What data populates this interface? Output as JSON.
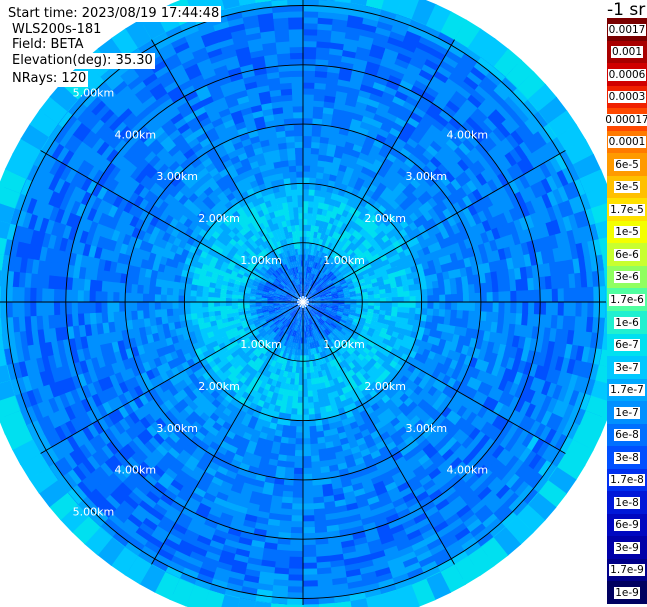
{
  "header": {
    "start_time": "Start time: 2023/08/19 17:44:48",
    "instrument": "WLS200s-181",
    "field": "Field: BETA",
    "elevation": "Elevation(deg): 35.30",
    "nrays": "NRays: 120"
  },
  "colorbar": {
    "unit": "-1 sr",
    "levels": [
      {
        "label": "0.0017",
        "color": "#7a0000"
      },
      {
        "label": "0.001",
        "color": "#a80000"
      },
      {
        "label": "0.0006",
        "color": "#d00000"
      },
      {
        "label": "0.0003",
        "color": "#f02000"
      },
      {
        "label": "0.00017",
        "color": "#ff4800"
      },
      {
        "label": "0.0001",
        "color": "#ff7a00"
      },
      {
        "label": "6e-5",
        "color": "#ff9a00"
      },
      {
        "label": "3e-5",
        "color": "#ffc000"
      },
      {
        "label": "1.7e-5",
        "color": "#ffe000"
      },
      {
        "label": "1e-5",
        "color": "#f4ff00"
      },
      {
        "label": "6e-6",
        "color": "#c8ff30"
      },
      {
        "label": "3e-6",
        "color": "#90ff60"
      },
      {
        "label": "1.7e-6",
        "color": "#50ffa0"
      },
      {
        "label": "1e-6",
        "color": "#20f0d0"
      },
      {
        "label": "6e-7",
        "color": "#00e0f0"
      },
      {
        "label": "3e-7",
        "color": "#00c8ff"
      },
      {
        "label": "1.7e-7",
        "color": "#00a8ff"
      },
      {
        "label": "1e-7",
        "color": "#0090ff"
      },
      {
        "label": "6e-8",
        "color": "#0070ff"
      },
      {
        "label": "3e-8",
        "color": "#0050ff"
      },
      {
        "label": "1.7e-8",
        "color": "#0030f0"
      },
      {
        "label": "1e-8",
        "color": "#0018d8"
      },
      {
        "label": "6e-9",
        "color": "#0008c0"
      },
      {
        "label": "3e-9",
        "color": "#0000a8"
      },
      {
        "label": "1.7e-9",
        "color": "#000088"
      },
      {
        "label": "1e-9",
        "color": "#000060"
      }
    ]
  },
  "chart_data": {
    "type": "heatmap",
    "projection": "polar",
    "field": "BETA",
    "elevation_deg": 35.3,
    "nrays": 120,
    "range_max_km": 5.6,
    "ring_labels": [
      "1.00km",
      "2.00km",
      "3.00km",
      "4.00km",
      "5.00km"
    ],
    "ring_values_km": [
      1,
      2,
      3,
      4,
      5
    ],
    "spoke_angles_deg": [
      0,
      30,
      60,
      90,
      120,
      150,
      180,
      210,
      240,
      270,
      300,
      330
    ],
    "radial_profile": [
      {
        "range_km": 0.0,
        "beta": "6e-8"
      },
      {
        "range_km": 0.6,
        "beta": "6e-8"
      },
      {
        "range_km": 1.0,
        "beta": "3e-7"
      },
      {
        "range_km": 1.8,
        "beta": "3e-7"
      },
      {
        "range_km": 2.2,
        "beta": "1e-7"
      },
      {
        "range_km": 4.8,
        "beta": "6e-8"
      },
      {
        "range_km": 5.3,
        "beta": "3e-7"
      }
    ]
  }
}
